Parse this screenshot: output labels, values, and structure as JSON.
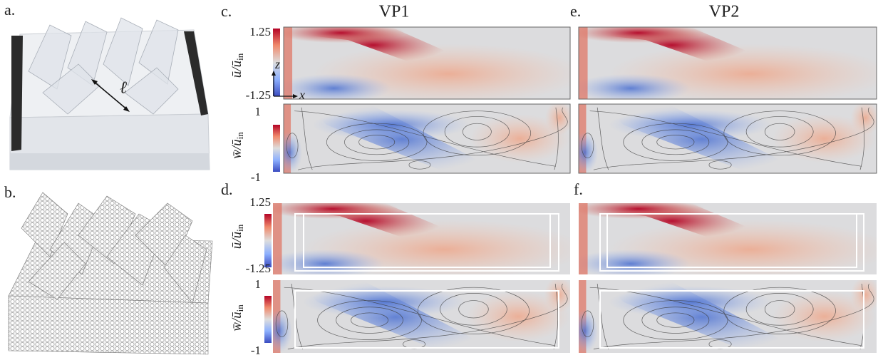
{
  "labels": {
    "a": "a.",
    "b": "b.",
    "c": "c.",
    "d": "d.",
    "e": "e.",
    "f": "f."
  },
  "columns": [
    "VP1",
    "VP2"
  ],
  "length_symbol": "ℓ",
  "axes": {
    "z": "z",
    "x": "x"
  },
  "colorbars": [
    {
      "label": "ū/ū",
      "subscript": "in",
      "max": 1.25,
      "min": -1.25
    },
    {
      "label": "w̄/ū",
      "subscript": "in",
      "max": 1,
      "min": -1
    },
    {
      "label": "ū/ū",
      "subscript": "in",
      "max": 1.25,
      "min": -1.25
    },
    {
      "label": "w̄/ū",
      "subscript": "in",
      "max": 1,
      "min": -1
    }
  ]
}
